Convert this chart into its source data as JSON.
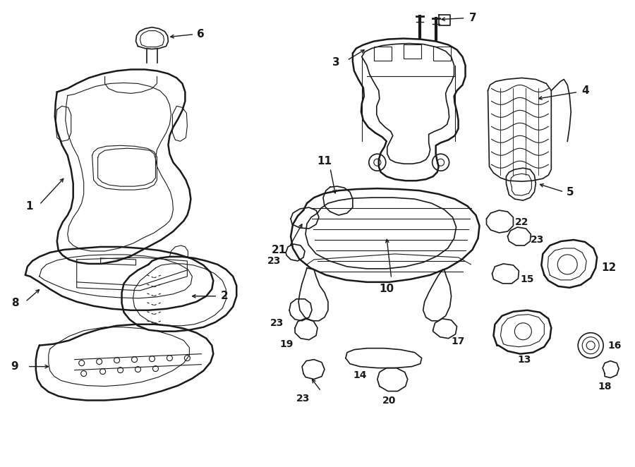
{
  "background_color": "#ffffff",
  "line_color": "#1a1a1a",
  "fig_width": 9.0,
  "fig_height": 6.62,
  "dpi": 100,
  "label_fontsize": 11,
  "annotation_lw": 1.0
}
